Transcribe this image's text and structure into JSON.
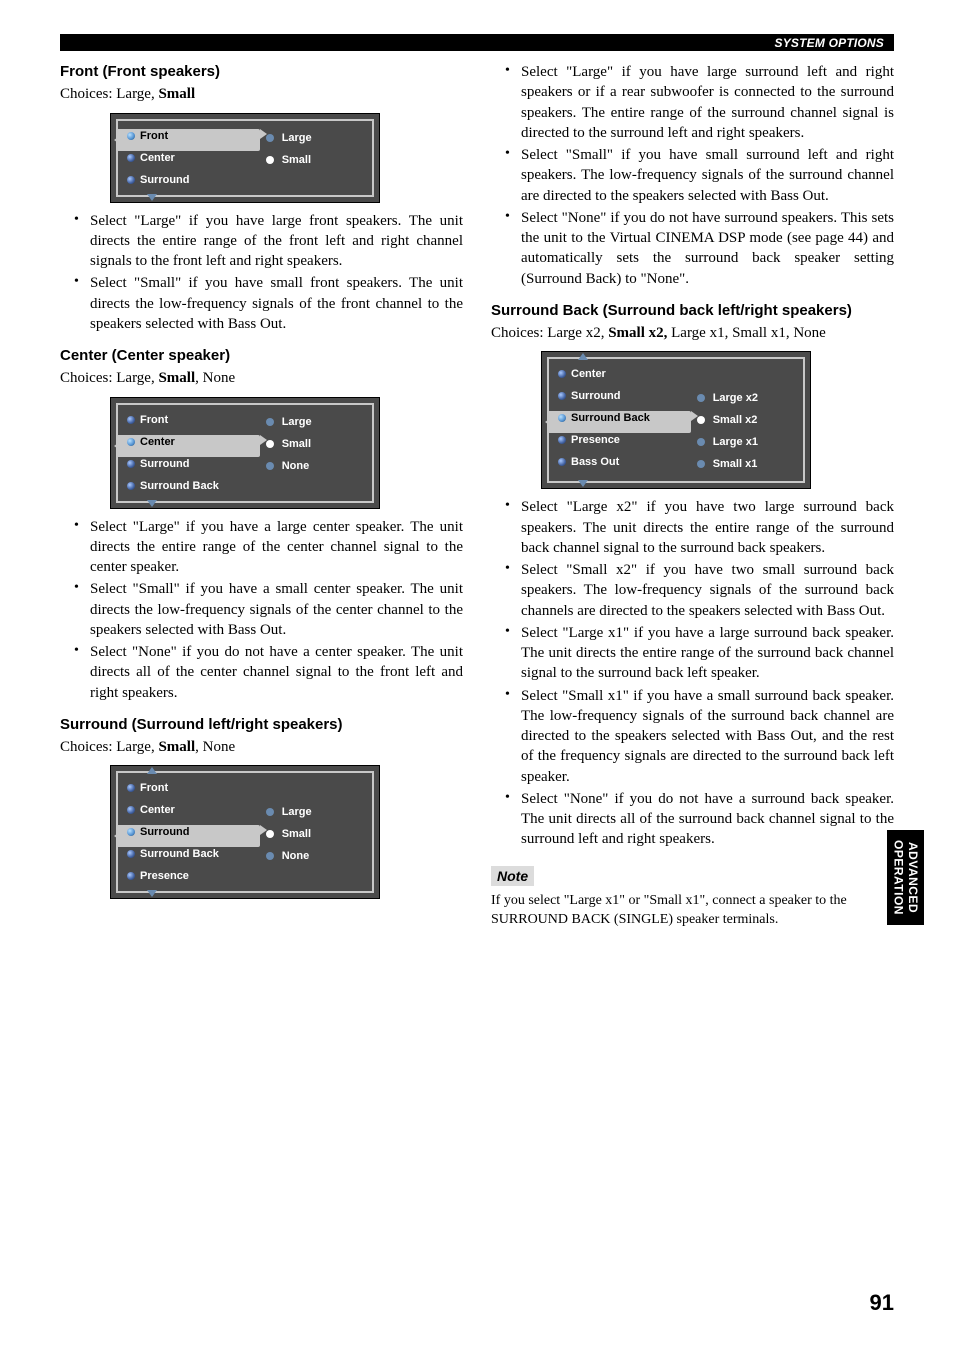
{
  "header": {
    "section": "SYSTEM OPTIONS"
  },
  "side_tab": {
    "line1": "ADVANCED",
    "line2": "OPERATION"
  },
  "page_number": "91",
  "colors": {
    "menu_bg": "#4a4a4a",
    "menu_border": "#c8c8c8",
    "dot_blue": "#4060a0",
    "text_white": "#ffffff"
  },
  "front": {
    "title": "Front (Front speakers)",
    "choices_prefix": "Choices: Large, ",
    "choices_bold": "Small",
    "choices_suffix": "",
    "menu": {
      "items": [
        "Front",
        "Center",
        "Surround"
      ],
      "selected_index": 0,
      "options": [
        "Large",
        "Small"
      ],
      "option_selected_index": 1,
      "arrow_up": false,
      "arrow_down": true
    },
    "bullets": [
      "Select \"Large\" if you have large front speakers. The unit directs the entire range of the front left and right channel signals to the front left and right speakers.",
      "Select \"Small\" if you have small front speakers. The unit directs the low-frequency signals of the front channel to the speakers selected with Bass Out."
    ]
  },
  "center": {
    "title": "Center (Center speaker)",
    "choices_prefix": "Choices: Large, ",
    "choices_bold": "Small",
    "choices_suffix": ", None",
    "menu": {
      "items": [
        "Front",
        "Center",
        "Surround",
        "Surround Back"
      ],
      "selected_index": 1,
      "options": [
        "Large",
        "Small",
        "None"
      ],
      "option_selected_index": 1,
      "arrow_up": false,
      "arrow_down": true
    },
    "bullets": [
      "Select \"Large\" if you have a large center speaker. The unit directs the entire range of the center channel signal to the center speaker.",
      "Select \"Small\" if you have a small center speaker. The unit directs the low-frequency signals of the center channel to the speakers selected with Bass Out.",
      "Select \"None\" if you do not have a center speaker. The unit directs all of the center channel signal to the front left and right speakers."
    ]
  },
  "surround": {
    "title": "Surround (Surround left/right speakers)",
    "choices_prefix": "Choices: Large, ",
    "choices_bold": "Small",
    "choices_suffix": ", None",
    "menu": {
      "items": [
        "Front",
        "Center",
        "Surround",
        "Surround Back",
        "Presence"
      ],
      "selected_index": 2,
      "options": [
        "Large",
        "Small",
        "None"
      ],
      "option_selected_index": 1,
      "arrow_up": true,
      "arrow_down": true
    },
    "right_bullets": [
      "Select \"Large\" if you have large surround left and right speakers or if a rear subwoofer is connected to the surround speakers. The entire range of the surround channel signal is directed to the surround left and right speakers.",
      "Select \"Small\" if you have small surround left and right speakers. The low-frequency signals of the surround channel are directed to the speakers selected with Bass Out.",
      "Select \"None\" if you do not have surround speakers. This sets the unit to the Virtual CINEMA DSP mode (see page 44) and automatically sets the surround back speaker setting (Surround Back) to \"None\"."
    ]
  },
  "surround_back": {
    "title": "Surround Back (Surround back left/right speakers)",
    "choices_prefix": "Choices: Large x2, ",
    "choices_bold": "Small x2,",
    "choices_suffix": " Large x1, Small x1, None",
    "menu": {
      "items": [
        "Center",
        "Surround",
        "Surround Back",
        "Presence",
        "Bass Out"
      ],
      "selected_index": 2,
      "options": [
        "Large x2",
        "Small x2",
        "Large x1",
        "Small x1"
      ],
      "option_selected_index": 1,
      "arrow_up": true,
      "arrow_down": true
    },
    "bullets": [
      "Select \"Large x2\" if you have two large surround back speakers. The unit directs the entire range of the surround back channel signal to the surround back speakers.",
      "Select \"Small x2\" if you have two small surround back speakers. The low-frequency signals of the surround back channels are directed to the speakers selected with Bass Out.",
      "Select \"Large x1\" if you have a large surround back speaker. The unit directs the entire range of the surround back channel signal to the surround back left speaker.",
      "Select \"Small x1\" if you have a small surround back speaker. The low-frequency signals of the surround back channel are directed to the speakers selected with Bass Out, and the rest of the frequency signals are directed to the surround back left speaker.",
      "Select \"None\" if you do not have a surround back speaker. The unit directs all of the surround back channel signal to the surround left and right speakers."
    ],
    "note_label": "Note",
    "note_text": "If you select \"Large x1\" or \"Small x1\", connect a speaker to the SURROUND BACK (SINGLE) speaker terminals."
  }
}
